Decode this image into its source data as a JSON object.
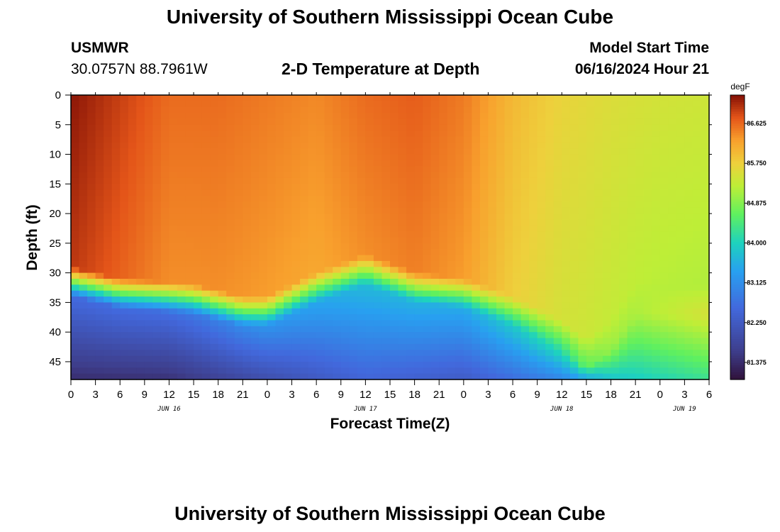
{
  "header": {
    "title": "University of Southern Mississippi Ocean Cube",
    "station_id": "USMWR",
    "station_coords": "30.0757N  88.7961W",
    "subtitle": "2-D Temperature at Depth",
    "model_start_label": "Model Start Time",
    "model_start_value": "06/16/2024 Hour 21"
  },
  "footer": {
    "title": "University of Southern Mississippi Ocean Cube"
  },
  "chart_data": {
    "type": "heatmap",
    "title": "2-D Temperature at Depth",
    "xlabel": "Forecast Time(Z)",
    "ylabel": "Depth (ft)",
    "xlim": [
      0,
      78
    ],
    "ylim": [
      48,
      0
    ],
    "x_tick_labels": [
      "0",
      "3",
      "6",
      "9",
      "12",
      "15",
      "18",
      "21",
      "0",
      "3",
      "6",
      "9",
      "12",
      "15",
      "18",
      "21",
      "0",
      "3",
      "6",
      "9",
      "12",
      "15",
      "18",
      "21",
      "0",
      "3",
      "6"
    ],
    "y_ticks": [
      0,
      5,
      10,
      15,
      20,
      25,
      30,
      35,
      40,
      45
    ],
    "date_labels": [
      {
        "label": "JUN 16",
        "hour": 12
      },
      {
        "label": "JUN 17",
        "hour": 36
      },
      {
        "label": "JUN 18",
        "hour": 60
      },
      {
        "label": "JUN 19",
        "hour": 75
      }
    ],
    "colorbar": {
      "unit": "degF",
      "min": 81.0,
      "max": 87.25,
      "labels": [
        "86.625",
        "85.750",
        "84.875",
        "84.000",
        "83.125",
        "82.250",
        "81.375"
      ]
    },
    "thermocline_depth_ft": [
      {
        "hour": 0,
        "depth": 31
      },
      {
        "hour": 6,
        "depth": 33
      },
      {
        "hour": 15,
        "depth": 34
      },
      {
        "hour": 21,
        "depth": 36
      },
      {
        "hour": 24,
        "depth": 36
      },
      {
        "hour": 30,
        "depth": 32
      },
      {
        "hour": 36,
        "depth": 29
      },
      {
        "hour": 42,
        "depth": 32
      },
      {
        "hour": 48,
        "depth": 33
      },
      {
        "hour": 54,
        "depth": 36
      },
      {
        "hour": 60,
        "depth": 40
      },
      {
        "hour": 63,
        "depth": 43
      },
      {
        "hour": 66,
        "depth": 40
      },
      {
        "hour": 69,
        "depth": 34
      },
      {
        "hour": 78,
        "depth": 34
      }
    ],
    "surface_temperature_degF": [
      {
        "hour": 0,
        "temp": 87.2
      },
      {
        "hour": 6,
        "temp": 86.9
      },
      {
        "hour": 12,
        "temp": 86.6
      },
      {
        "hour": 18,
        "temp": 86.6
      },
      {
        "hour": 24,
        "temp": 86.5
      },
      {
        "hour": 30,
        "temp": 86.4
      },
      {
        "hour": 36,
        "temp": 86.6
      },
      {
        "hour": 42,
        "temp": 86.7
      },
      {
        "hour": 48,
        "temp": 86.5
      },
      {
        "hour": 54,
        "temp": 86.0
      },
      {
        "hour": 60,
        "temp": 85.7
      },
      {
        "hour": 66,
        "temp": 85.55
      },
      {
        "hour": 72,
        "temp": 85.45
      },
      {
        "hour": 78,
        "temp": 85.4
      }
    ],
    "bottom_temperature_degF": [
      {
        "hour": 0,
        "temp": 81.4
      },
      {
        "hour": 12,
        "temp": 81.45
      },
      {
        "hour": 24,
        "temp": 82.0
      },
      {
        "hour": 36,
        "temp": 82.5
      },
      {
        "hour": 48,
        "temp": 82.3
      },
      {
        "hour": 60,
        "temp": 83.0
      },
      {
        "hour": 66,
        "temp": 83.8
      },
      {
        "hour": 78,
        "temp": 84.3
      }
    ]
  }
}
